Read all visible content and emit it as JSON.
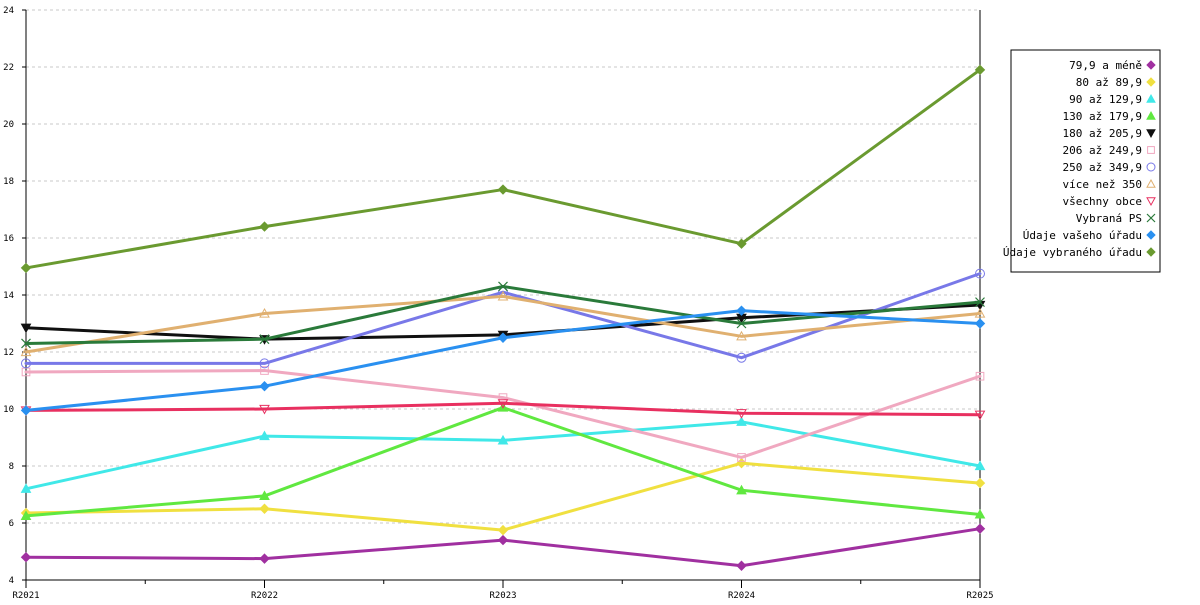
{
  "chart_data": {
    "type": "line",
    "categories": [
      "R2021",
      "R2022",
      "R2023",
      "R2024",
      "R2025"
    ],
    "ylim": [
      4,
      24
    ],
    "yticks": [
      4,
      6,
      8,
      10,
      12,
      14,
      16,
      18,
      20,
      22,
      24
    ],
    "grid": true,
    "legend_position": "right",
    "series": [
      {
        "name": "79,9 a méně",
        "color": "#a030a0",
        "marker": "diamond",
        "values": [
          4.8,
          4.75,
          5.4,
          4.5,
          5.8
        ]
      },
      {
        "name": "80 až 89,9",
        "color": "#f0e040",
        "marker": "diamond",
        "values": [
          6.35,
          6.5,
          5.75,
          8.1,
          7.4
        ]
      },
      {
        "name": "90 až 129,9",
        "color": "#40e8e8",
        "marker": "triangle-up",
        "values": [
          7.2,
          9.05,
          8.9,
          9.55,
          8.0
        ]
      },
      {
        "name": "130 až 179,9",
        "color": "#60e840",
        "marker": "triangle-up",
        "values": [
          6.25,
          6.95,
          10.05,
          7.15,
          6.3
        ]
      },
      {
        "name": "180 až 205,9",
        "color": "#101010",
        "marker": "triangle-down",
        "values": [
          12.85,
          12.45,
          12.6,
          13.2,
          13.65
        ]
      },
      {
        "name": "206 až 249,9",
        "color": "#f0a8c0",
        "marker": "square",
        "values": [
          11.3,
          11.35,
          10.4,
          8.3,
          11.15
        ]
      },
      {
        "name": "250 až 349,9",
        "color": "#7878e8",
        "marker": "circle",
        "values": [
          11.6,
          11.6,
          14.1,
          11.8,
          14.75
        ]
      },
      {
        "name": "více než 350",
        "color": "#e0b070",
        "marker": "triangle-up-open",
        "values": [
          12.0,
          13.35,
          13.95,
          12.55,
          13.35
        ]
      },
      {
        "name": "všechny obce",
        "color": "#e83060",
        "marker": "triangle-down-open",
        "values": [
          9.95,
          10.0,
          10.2,
          9.85,
          9.8
        ]
      },
      {
        "name": "Vybraná PS",
        "color": "#2a7a3a",
        "marker": "x",
        "values": [
          12.3,
          12.45,
          14.3,
          13.0,
          13.75
        ]
      },
      {
        "name": "Údaje vašeho úřadu",
        "color": "#2a90f0",
        "marker": "diamond",
        "values": [
          9.95,
          10.8,
          12.5,
          13.45,
          13.0
        ]
      },
      {
        "name": "Údaje vybraného úřadu",
        "color": "#6a9a30",
        "marker": "diamond",
        "values": [
          14.95,
          16.4,
          17.7,
          15.8,
          21.9
        ]
      }
    ]
  }
}
